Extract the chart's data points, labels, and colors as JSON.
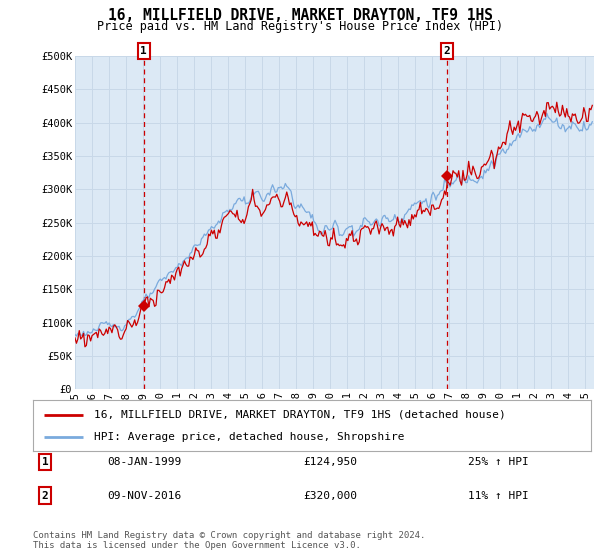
{
  "title": "16, MILLFIELD DRIVE, MARKET DRAYTON, TF9 1HS",
  "subtitle": "Price paid vs. HM Land Registry's House Price Index (HPI)",
  "plot_bg_color": "#dce9f5",
  "ylim": [
    0,
    500000
  ],
  "ytick_vals": [
    0,
    50000,
    100000,
    150000,
    200000,
    250000,
    300000,
    350000,
    400000,
    450000,
    500000
  ],
  "xlim_start": 1995.0,
  "xlim_end": 2025.5,
  "sale1_x": 1999.04,
  "sale1_y": 124950,
  "sale2_x": 2016.86,
  "sale2_y": 320000,
  "legend_line1": "16, MILLFIELD DRIVE, MARKET DRAYTON, TF9 1HS (detached house)",
  "legend_line2": "HPI: Average price, detached house, Shropshire",
  "table_entries": [
    {
      "num": "1",
      "date": "08-JAN-1999",
      "price": "£124,950",
      "hpi": "25% ↑ HPI"
    },
    {
      "num": "2",
      "date": "09-NOV-2016",
      "price": "£320,000",
      "hpi": "11% ↑ HPI"
    }
  ],
  "footnote": "Contains HM Land Registry data © Crown copyright and database right 2024.\nThis data is licensed under the Open Government Licence v3.0.",
  "red_color": "#cc0000",
  "blue_color": "#7aaadd",
  "grid_color": "#c8d8e8",
  "title_fontsize": 10.5,
  "subtitle_fontsize": 8.5,
  "tick_fontsize": 7.5,
  "legend_fontsize": 8,
  "table_fontsize": 8,
  "footnote_fontsize": 6.5
}
